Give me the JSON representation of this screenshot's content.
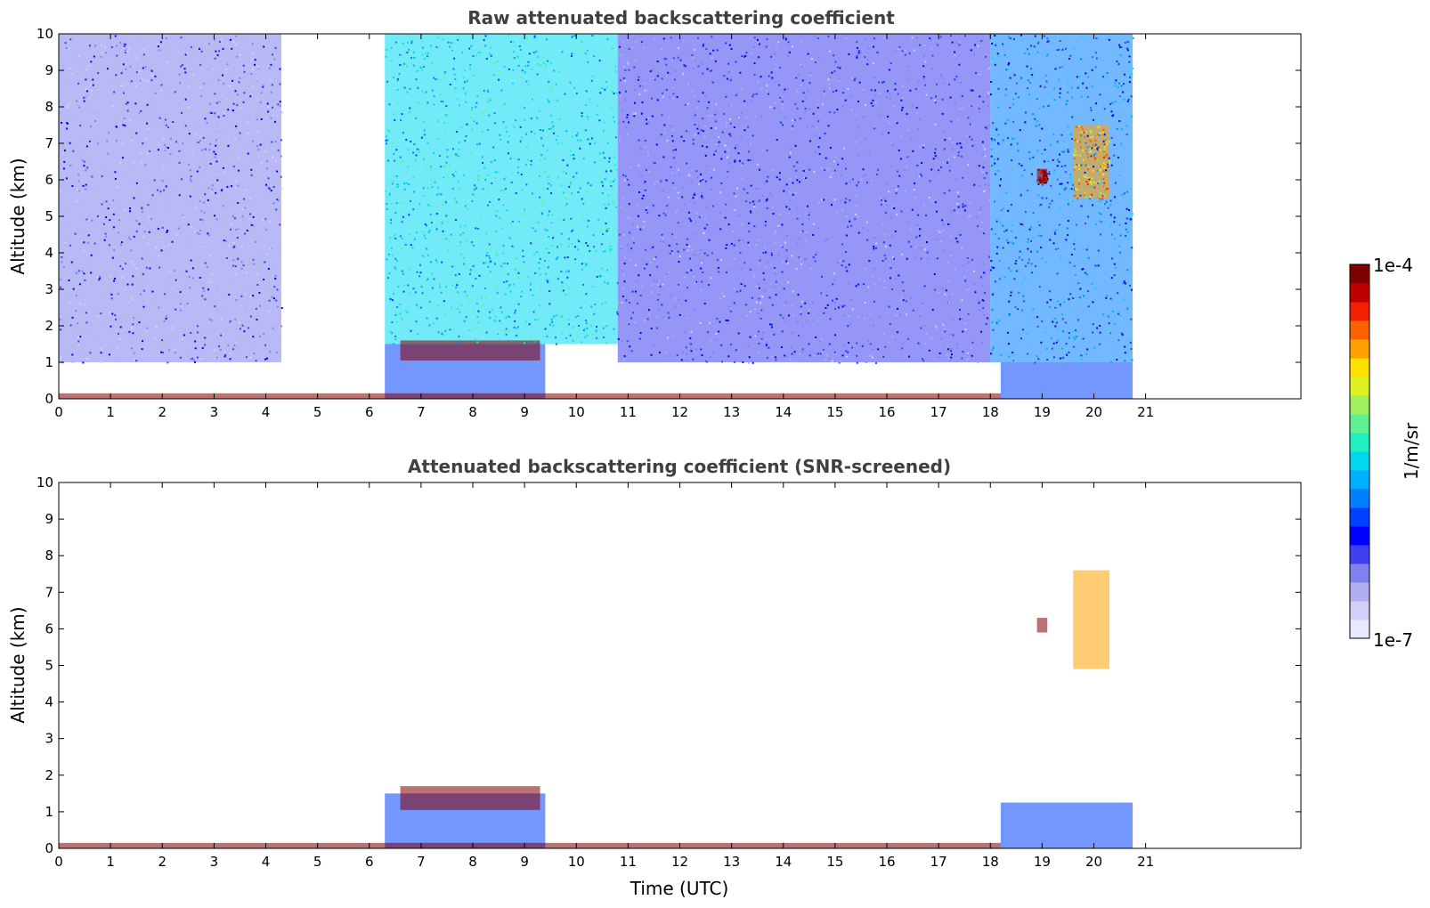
{
  "chart_data": [
    {
      "id": "raw",
      "type": "heatmap",
      "title": "Raw attenuated backscattering coefficient",
      "xlabel": "",
      "ylabel": "Altitude (km)",
      "xlim": [
        0,
        24
      ],
      "ylim": [
        0,
        10
      ],
      "xticks": [
        0,
        1,
        2,
        3,
        4,
        5,
        6,
        7,
        8,
        9,
        10,
        11,
        12,
        13,
        14,
        15,
        16,
        17,
        18,
        19,
        20,
        21
      ],
      "yticks": [
        0,
        1,
        2,
        3,
        4,
        5,
        6,
        7,
        8,
        9,
        10
      ],
      "data_end_hour": 20.75,
      "regions": [
        {
          "name": "early-night-noise",
          "t": [
            0.0,
            4.3
          ],
          "alt": [
            1.0,
            10.0
          ],
          "level": 0.18
        },
        {
          "name": "daytime-solar-noise",
          "t": [
            6.3,
            10.8
          ],
          "alt": [
            1.5,
            10.0
          ],
          "level": 0.45
        },
        {
          "name": "afternoon-noise",
          "t": [
            10.8,
            18.0
          ],
          "alt": [
            1.0,
            10.0
          ],
          "level": 0.2
        },
        {
          "name": "evening-noise",
          "t": [
            18.0,
            20.75
          ],
          "alt": [
            1.0,
            10.0
          ],
          "level": 0.35
        },
        {
          "name": "boundary-layer-morning",
          "t": [
            6.3,
            9.4
          ],
          "alt": [
            0.0,
            1.5
          ],
          "level": 0.3
        },
        {
          "name": "cloud-top-morning",
          "t": [
            6.6,
            9.3
          ],
          "alt": [
            1.05,
            1.6
          ],
          "level": 1.0
        },
        {
          "name": "surface-layer",
          "t": [
            0.0,
            18.2
          ],
          "alt": [
            0.0,
            0.15
          ],
          "level": 0.95
        },
        {
          "name": "evening-aerosol-layer",
          "t": [
            18.2,
            20.75
          ],
          "alt": [
            0.0,
            1.0
          ],
          "level": 0.3
        },
        {
          "name": "cirrus-19h",
          "t": [
            18.9,
            19.1
          ],
          "alt": [
            5.9,
            6.3
          ],
          "level": 1.0
        },
        {
          "name": "cirrus-20h",
          "t": [
            19.6,
            20.3
          ],
          "alt": [
            5.5,
            7.5
          ],
          "level": 0.75
        }
      ]
    },
    {
      "id": "screened",
      "type": "heatmap",
      "title": "Attenuated backscattering coefficient (SNR-screened)",
      "xlabel": "Time (UTC)",
      "ylabel": "Altitude (km)",
      "xlim": [
        0,
        24
      ],
      "ylim": [
        0,
        10
      ],
      "xticks": [
        0,
        1,
        2,
        3,
        4,
        5,
        6,
        7,
        8,
        9,
        10,
        11,
        12,
        13,
        14,
        15,
        16,
        17,
        18,
        19,
        20,
        21
      ],
      "yticks": [
        0,
        1,
        2,
        3,
        4,
        5,
        6,
        7,
        8,
        9,
        10
      ],
      "data_end_hour": 20.75,
      "regions": [
        {
          "name": "boundary-layer-morning",
          "t": [
            6.3,
            9.4
          ],
          "alt": [
            0.0,
            1.5
          ],
          "level": 0.3
        },
        {
          "name": "cloud-top-morning",
          "t": [
            6.6,
            9.3
          ],
          "alt": [
            1.05,
            1.7
          ],
          "level": 1.0
        },
        {
          "name": "surface-layer",
          "t": [
            0.0,
            18.2
          ],
          "alt": [
            0.0,
            0.15
          ],
          "level": 0.95
        },
        {
          "name": "evening-aerosol-layer",
          "t": [
            18.2,
            20.75
          ],
          "alt": [
            0.0,
            1.25
          ],
          "level": 0.3
        },
        {
          "name": "cirrus-19h",
          "t": [
            18.9,
            19.1
          ],
          "alt": [
            5.9,
            6.3
          ],
          "level": 1.0
        },
        {
          "name": "cirrus-20h",
          "t": [
            19.6,
            20.3
          ],
          "alt": [
            4.9,
            7.6
          ],
          "level": 0.75
        }
      ]
    }
  ],
  "colorbar": {
    "label": "1/m/sr",
    "min_label": "1e-7",
    "max_label": "1e-4",
    "colors": [
      "#e8e8ff",
      "#d0d0f8",
      "#b0b0f0",
      "#8080ee",
      "#4040f0",
      "#0000ff",
      "#0040ff",
      "#0080ff",
      "#00b0ff",
      "#00d8f0",
      "#20f0c0",
      "#60f090",
      "#a0f060",
      "#e0f020",
      "#ffe000",
      "#ffa000",
      "#ff6000",
      "#f02000",
      "#c00000",
      "#800000"
    ]
  }
}
